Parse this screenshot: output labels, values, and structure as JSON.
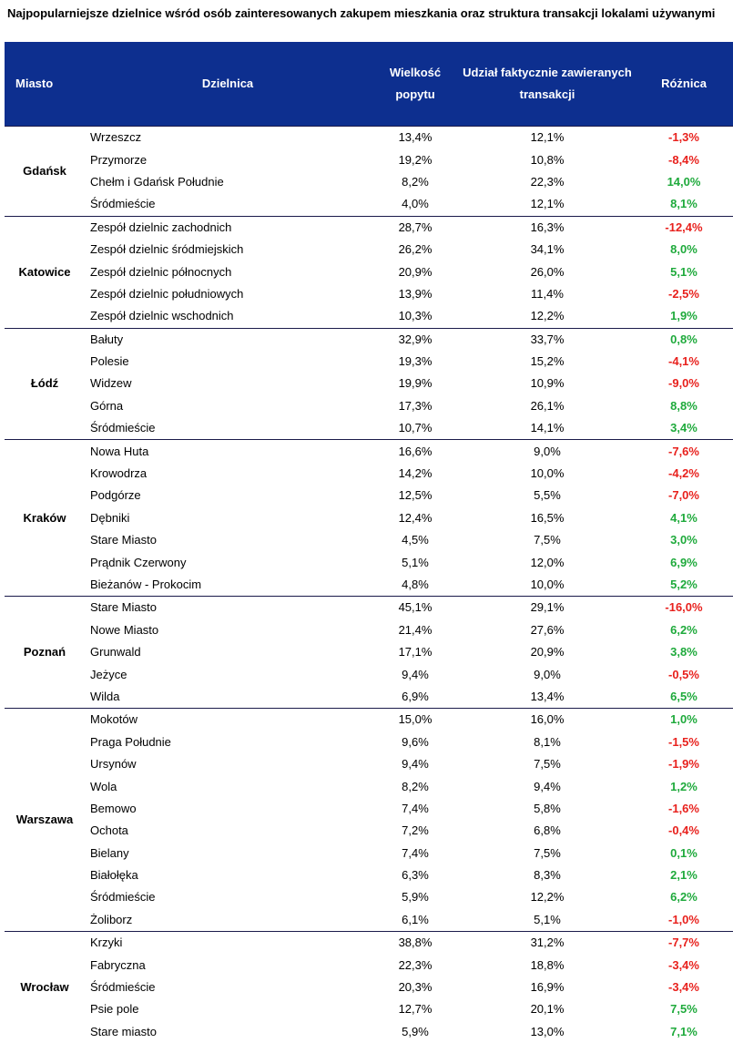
{
  "title": "Najpopularniejsze dzielnice wśród osób zainteresowanych zakupem mieszkania oraz struktura transakcji lokalami używanymi",
  "columns": {
    "miasto": "Miasto",
    "dzielnica": "Dzielnica",
    "popyt": "Wielkość popytu",
    "udzial": "Udział faktycznie zawieranych transakcji",
    "roznica": "Różnica"
  },
  "colors": {
    "header_bg": "#0d2f8f",
    "negative": "#e8211d",
    "positive": "#1faa3c"
  },
  "groups": [
    {
      "city": "Gdańsk",
      "rows": [
        {
          "district": "Wrzeszcz",
          "demand": "13,4%",
          "share": "12,1%",
          "diff": "-1,3%"
        },
        {
          "district": "Przymorze",
          "demand": "19,2%",
          "share": "10,8%",
          "diff": "-8,4%"
        },
        {
          "district": "Chełm i Gdańsk Południe",
          "demand": "8,2%",
          "share": "22,3%",
          "diff": "14,0%"
        },
        {
          "district": "Śródmieście",
          "demand": "4,0%",
          "share": "12,1%",
          "diff": "8,1%"
        }
      ]
    },
    {
      "city": "Katowice",
      "rows": [
        {
          "district": "Zespół dzielnic zachodnich",
          "demand": "28,7%",
          "share": "16,3%",
          "diff": "-12,4%"
        },
        {
          "district": "Zespół dzielnic śródmiejskich",
          "demand": "26,2%",
          "share": "34,1%",
          "diff": "8,0%"
        },
        {
          "district": "Zespół dzielnic północnych",
          "demand": "20,9%",
          "share": "26,0%",
          "diff": "5,1%"
        },
        {
          "district": "Zespół dzielnic południowych",
          "demand": "13,9%",
          "share": "11,4%",
          "diff": "-2,5%"
        },
        {
          "district": "Zespół dzielnic wschodnich",
          "demand": "10,3%",
          "share": "12,2%",
          "diff": "1,9%"
        }
      ]
    },
    {
      "city": "Łódź",
      "rows": [
        {
          "district": "Bałuty",
          "demand": "32,9%",
          "share": "33,7%",
          "diff": "0,8%"
        },
        {
          "district": "Polesie",
          "demand": "19,3%",
          "share": "15,2%",
          "diff": "-4,1%"
        },
        {
          "district": "Widzew",
          "demand": "19,9%",
          "share": "10,9%",
          "diff": "-9,0%"
        },
        {
          "district": "Górna",
          "demand": "17,3%",
          "share": "26,1%",
          "diff": "8,8%"
        },
        {
          "district": "Śródmieście",
          "demand": "10,7%",
          "share": "14,1%",
          "diff": "3,4%"
        }
      ]
    },
    {
      "city": "Kraków",
      "rows": [
        {
          "district": "Nowa Huta",
          "demand": "16,6%",
          "share": "9,0%",
          "diff": "-7,6%"
        },
        {
          "district": "Krowodrza",
          "demand": "14,2%",
          "share": "10,0%",
          "diff": "-4,2%"
        },
        {
          "district": "Podgórze",
          "demand": "12,5%",
          "share": "5,5%",
          "diff": "-7,0%"
        },
        {
          "district": "Dębniki",
          "demand": "12,4%",
          "share": "16,5%",
          "diff": "4,1%"
        },
        {
          "district": "Stare Miasto",
          "demand": "4,5%",
          "share": "7,5%",
          "diff": "3,0%"
        },
        {
          "district": "Prądnik Czerwony",
          "demand": "5,1%",
          "share": "12,0%",
          "diff": "6,9%"
        },
        {
          "district": "Bieżanów - Prokocim",
          "demand": "4,8%",
          "share": "10,0%",
          "diff": "5,2%"
        }
      ]
    },
    {
      "city": "Poznań",
      "rows": [
        {
          "district": "Stare Miasto",
          "demand": "45,1%",
          "share": "29,1%",
          "diff": "-16,0%"
        },
        {
          "district": "Nowe Miasto",
          "demand": "21,4%",
          "share": "27,6%",
          "diff": "6,2%"
        },
        {
          "district": "Grunwald",
          "demand": "17,1%",
          "share": "20,9%",
          "diff": "3,8%"
        },
        {
          "district": "Jeżyce",
          "demand": "9,4%",
          "share": "9,0%",
          "diff": "-0,5%"
        },
        {
          "district": "Wilda",
          "demand": "6,9%",
          "share": "13,4%",
          "diff": "6,5%"
        }
      ]
    },
    {
      "city": "Warszawa",
      "rows": [
        {
          "district": "Mokotów",
          "demand": "15,0%",
          "share": "16,0%",
          "diff": "1,0%"
        },
        {
          "district": "Praga Południe",
          "demand": "9,6%",
          "share": "8,1%",
          "diff": "-1,5%"
        },
        {
          "district": "Ursynów",
          "demand": "9,4%",
          "share": "7,5%",
          "diff": "-1,9%"
        },
        {
          "district": "Wola",
          "demand": "8,2%",
          "share": "9,4%",
          "diff": "1,2%"
        },
        {
          "district": "Bemowo",
          "demand": "7,4%",
          "share": "5,8%",
          "diff": "-1,6%"
        },
        {
          "district": "Ochota",
          "demand": "7,2%",
          "share": "6,8%",
          "diff": "-0,4%"
        },
        {
          "district": "Bielany",
          "demand": "7,4%",
          "share": "7,5%",
          "diff": "0,1%"
        },
        {
          "district": "Białołęka",
          "demand": "6,3%",
          "share": "8,3%",
          "diff": "2,1%"
        },
        {
          "district": "Śródmieście",
          "demand": "5,9%",
          "share": "12,2%",
          "diff": "6,2%"
        },
        {
          "district": "Żoliborz",
          "demand": "6,1%",
          "share": "5,1%",
          "diff": "-1,0%"
        }
      ]
    },
    {
      "city": "Wrocław",
      "rows": [
        {
          "district": "Krzyki",
          "demand": "38,8%",
          "share": "31,2%",
          "diff": "-7,7%"
        },
        {
          "district": "Fabryczna",
          "demand": "22,3%",
          "share": "18,8%",
          "diff": "-3,4%"
        },
        {
          "district": "Śródmieście",
          "demand": "20,3%",
          "share": "16,9%",
          "diff": "-3,4%"
        },
        {
          "district": "Psie pole",
          "demand": "12,7%",
          "share": "20,1%",
          "diff": "7,5%"
        },
        {
          "district": "Stare miasto",
          "demand": "5,9%",
          "share": "13,0%",
          "diff": "7,1%"
        }
      ]
    }
  ]
}
